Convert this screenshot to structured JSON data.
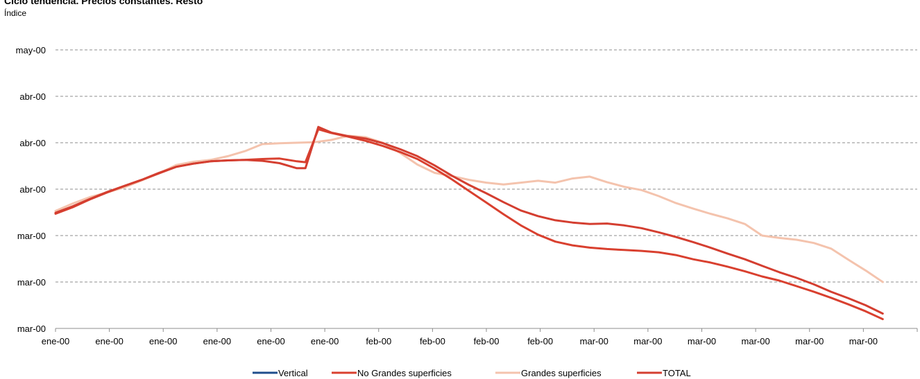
{
  "chart_data": {
    "type": "line",
    "title": "Ciclo tendencia. Precios constantes. Resto",
    "subtitle": "Índice",
    "y_tick_labels": [
      "mar-00",
      "mar-00",
      "mar-00",
      "abr-00",
      "abr-00",
      "abr-00",
      "may-00"
    ],
    "x_tick_labels": [
      "ene-00",
      "ene-00",
      "ene-00",
      "ene-00",
      "ene-00",
      "ene-00",
      "feb-00",
      "feb-00",
      "feb-00",
      "feb-00",
      "mar-00",
      "mar-00",
      "mar-00",
      "mar-00",
      "mar-00",
      "mar-00"
    ],
    "y_range": [
      0,
      6
    ],
    "x_range": [
      0,
      100
    ],
    "grid": "horizontal dashed",
    "legend_position": "bottom",
    "series": [
      {
        "name": "Vertical",
        "color": "#1f4e8c",
        "points": []
      },
      {
        "name": "No Grandes superficies",
        "color": "#d9402f",
        "points": [
          [
            0,
            2.47
          ],
          [
            2,
            2.61
          ],
          [
            4,
            2.78
          ],
          [
            6,
            2.93
          ],
          [
            8,
            3.07
          ],
          [
            10,
            3.2
          ],
          [
            12,
            3.35
          ],
          [
            14,
            3.48
          ],
          [
            16,
            3.55
          ],
          [
            18,
            3.6
          ],
          [
            20,
            3.62
          ],
          [
            22,
            3.63
          ],
          [
            24,
            3.65
          ],
          [
            26,
            3.66
          ],
          [
            28,
            3.6
          ],
          [
            29,
            3.58
          ],
          [
            30.5,
            4.29
          ],
          [
            32,
            4.21
          ],
          [
            34,
            4.13
          ],
          [
            36,
            4.04
          ],
          [
            38,
            3.93
          ],
          [
            40,
            3.8
          ],
          [
            42,
            3.65
          ],
          [
            44,
            3.44
          ],
          [
            46,
            3.21
          ],
          [
            48,
            2.96
          ],
          [
            50,
            2.71
          ],
          [
            52,
            2.46
          ],
          [
            54,
            2.22
          ],
          [
            56,
            2.02
          ],
          [
            58,
            1.87
          ],
          [
            60,
            1.79
          ],
          [
            62,
            1.74
          ],
          [
            64,
            1.71
          ],
          [
            66,
            1.69
          ],
          [
            68,
            1.67
          ],
          [
            70,
            1.64
          ],
          [
            72,
            1.58
          ],
          [
            74,
            1.49
          ],
          [
            76,
            1.42
          ],
          [
            78,
            1.33
          ],
          [
            80,
            1.23
          ],
          [
            82,
            1.12
          ],
          [
            84,
            1.03
          ],
          [
            86,
            0.91
          ],
          [
            88,
            0.79
          ],
          [
            90,
            0.66
          ],
          [
            92,
            0.52
          ],
          [
            94,
            0.37
          ],
          [
            96,
            0.2
          ]
        ]
      },
      {
        "name": "Grandes superficies",
        "color": "#f4c3ad",
        "points": [
          [
            0,
            2.53
          ],
          [
            2,
            2.69
          ],
          [
            4,
            2.83
          ],
          [
            6,
            2.93
          ],
          [
            8,
            3.04
          ],
          [
            10,
            3.19
          ],
          [
            12,
            3.34
          ],
          [
            14,
            3.52
          ],
          [
            16,
            3.59
          ],
          [
            18,
            3.63
          ],
          [
            20,
            3.71
          ],
          [
            22,
            3.82
          ],
          [
            24,
            3.97
          ],
          [
            26,
            3.99
          ],
          [
            28,
            4.0
          ],
          [
            30,
            4.01
          ],
          [
            32,
            4.06
          ],
          [
            34,
            4.15
          ],
          [
            36,
            4.12
          ],
          [
            38,
            4.0
          ],
          [
            40,
            3.78
          ],
          [
            42,
            3.53
          ],
          [
            44,
            3.35
          ],
          [
            46,
            3.28
          ],
          [
            48,
            3.2
          ],
          [
            50,
            3.14
          ],
          [
            52,
            3.1
          ],
          [
            54,
            3.14
          ],
          [
            56,
            3.18
          ],
          [
            58,
            3.14
          ],
          [
            60,
            3.23
          ],
          [
            62,
            3.27
          ],
          [
            64,
            3.15
          ],
          [
            66,
            3.05
          ],
          [
            68,
            2.98
          ],
          [
            70,
            2.85
          ],
          [
            72,
            2.7
          ],
          [
            74,
            2.58
          ],
          [
            76,
            2.47
          ],
          [
            78,
            2.37
          ],
          [
            80,
            2.25
          ],
          [
            82,
            2.0
          ],
          [
            84,
            1.95
          ],
          [
            86,
            1.91
          ],
          [
            88,
            1.84
          ],
          [
            90,
            1.72
          ],
          [
            92,
            1.48
          ],
          [
            94,
            1.25
          ],
          [
            96,
            1.0
          ]
        ]
      },
      {
        "name": "TOTAL",
        "color": "#d43e30",
        "points": [
          [
            0,
            2.49
          ],
          [
            2,
            2.63
          ],
          [
            4,
            2.79
          ],
          [
            6,
            2.94
          ],
          [
            8,
            3.07
          ],
          [
            10,
            3.2
          ],
          [
            12,
            3.34
          ],
          [
            14,
            3.48
          ],
          [
            16,
            3.55
          ],
          [
            18,
            3.6
          ],
          [
            20,
            3.62
          ],
          [
            22,
            3.63
          ],
          [
            24,
            3.61
          ],
          [
            26,
            3.56
          ],
          [
            28,
            3.45
          ],
          [
            29,
            3.45
          ],
          [
            30.5,
            4.34
          ],
          [
            32,
            4.22
          ],
          [
            34,
            4.14
          ],
          [
            36,
            4.09
          ],
          [
            38,
            3.99
          ],
          [
            40,
            3.86
          ],
          [
            42,
            3.71
          ],
          [
            44,
            3.51
          ],
          [
            46,
            3.29
          ],
          [
            48,
            3.09
          ],
          [
            50,
            2.91
          ],
          [
            52,
            2.72
          ],
          [
            54,
            2.54
          ],
          [
            56,
            2.42
          ],
          [
            58,
            2.33
          ],
          [
            60,
            2.28
          ],
          [
            62,
            2.25
          ],
          [
            64,
            2.26
          ],
          [
            66,
            2.22
          ],
          [
            68,
            2.16
          ],
          [
            70,
            2.07
          ],
          [
            72,
            1.97
          ],
          [
            74,
            1.86
          ],
          [
            76,
            1.74
          ],
          [
            78,
            1.61
          ],
          [
            80,
            1.49
          ],
          [
            82,
            1.35
          ],
          [
            84,
            1.21
          ],
          [
            86,
            1.09
          ],
          [
            88,
            0.95
          ],
          [
            90,
            0.79
          ],
          [
            92,
            0.65
          ],
          [
            94,
            0.5
          ],
          [
            96,
            0.32
          ]
        ]
      }
    ]
  }
}
